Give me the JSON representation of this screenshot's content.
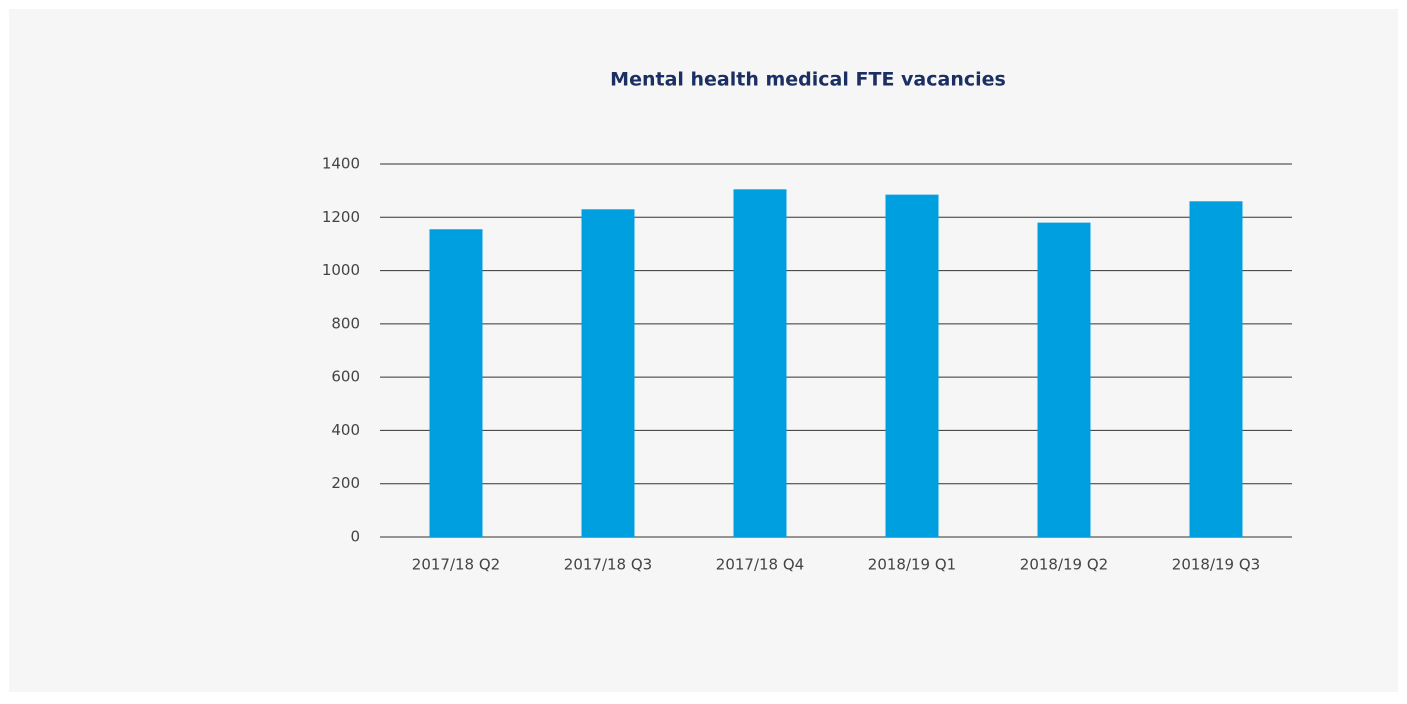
{
  "chart_data": {
    "type": "bar",
    "title": "Mental health medical FTE vacancies",
    "categories": [
      "2017/18 Q2",
      "2017/18 Q3",
      "2017/18 Q4",
      "2018/19 Q1",
      "2018/19 Q2",
      "2018/19 Q3"
    ],
    "values": [
      1155,
      1230,
      1305,
      1285,
      1180,
      1260
    ],
    "color": "#009fe0",
    "ylim": [
      0,
      1400
    ],
    "yticks": [
      0,
      200,
      400,
      600,
      800,
      1000,
      1200,
      1400
    ],
    "grid": true
  }
}
